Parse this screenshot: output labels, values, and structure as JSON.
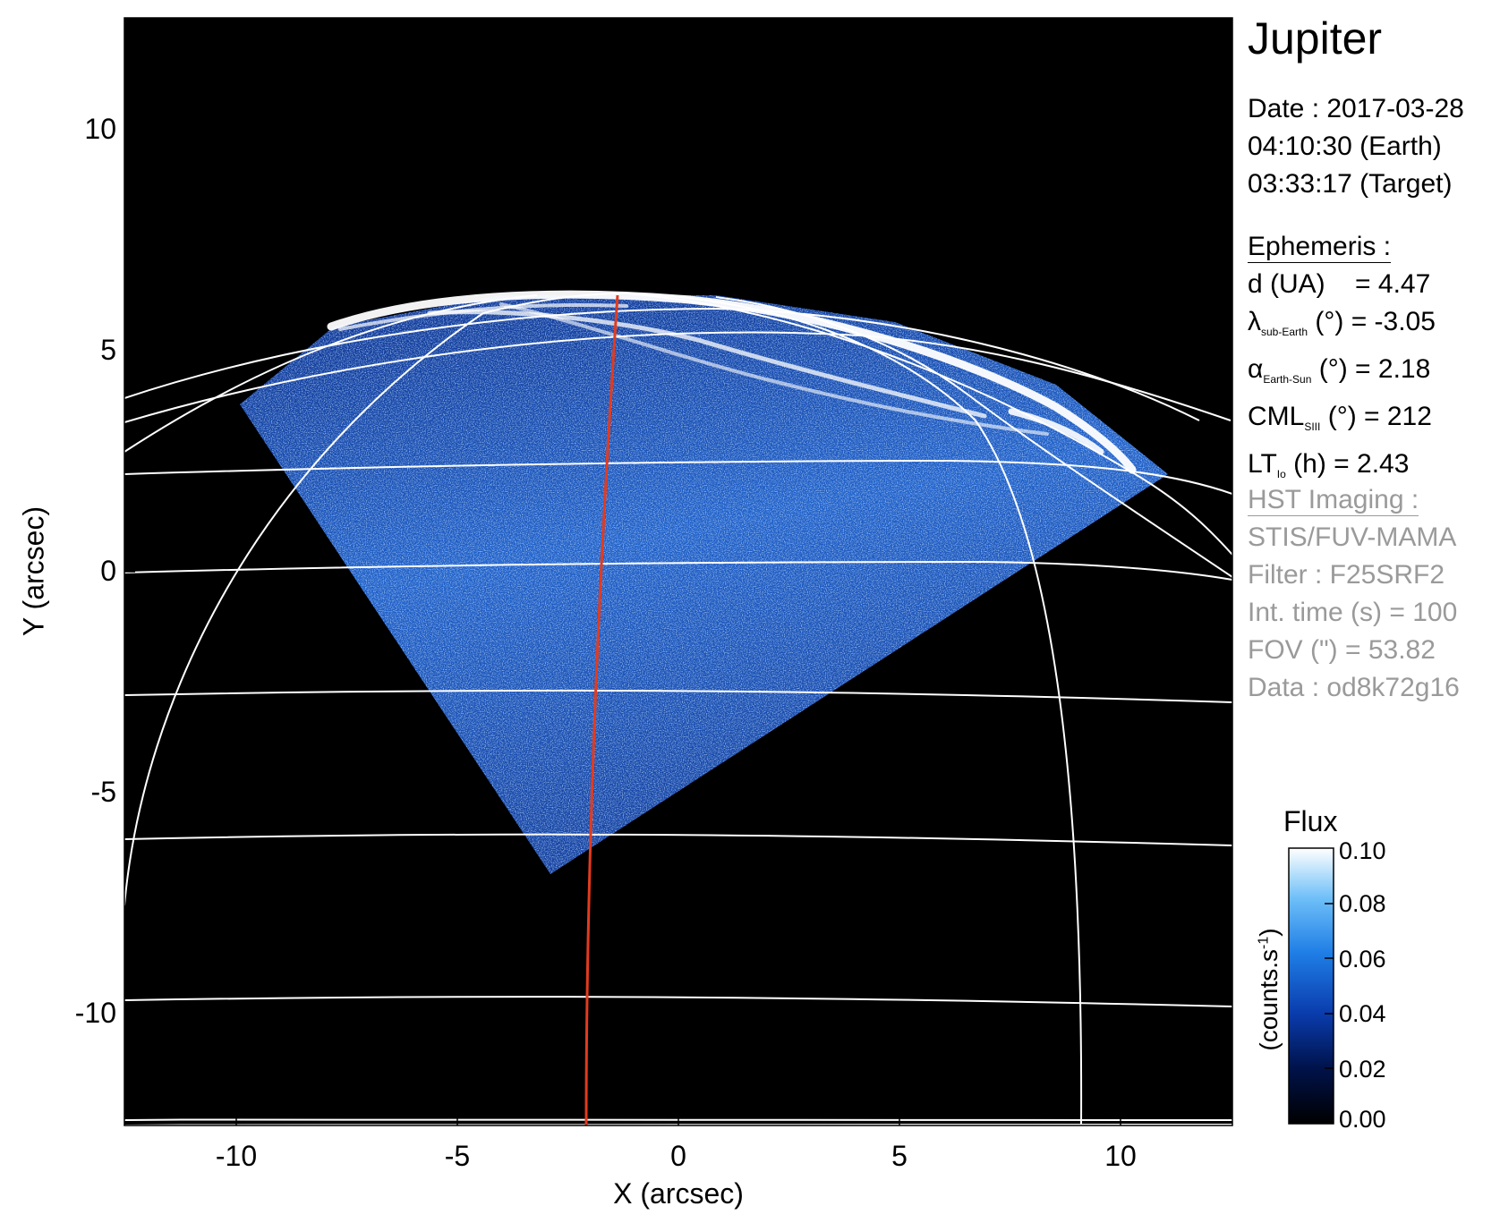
{
  "title": "Jupiter",
  "date": {
    "line1": "Date : 2017-03-28",
    "line2": "04:10:30 (Earth)",
    "line3": "03:33:17 (Target)"
  },
  "ephemeris": {
    "header": "Ephemeris :",
    "d": {
      "label": "d (UA)",
      "value": "= 4.47"
    },
    "lambda": {
      "symbol": "λ",
      "sub": "sub-Earth",
      "rest": "(°) = -3.05"
    },
    "alpha": {
      "symbol": "α",
      "sub": "Earth-Sun",
      "rest": "(°) = 2.18"
    },
    "cml": {
      "symbol": "CML",
      "sub": "SIII",
      "rest": "(°) = 212"
    },
    "lt": {
      "symbol": "LT",
      "sub": "Io",
      "rest": "(h) = 2.43"
    }
  },
  "imaging": {
    "header": "HST Imaging :",
    "lines": [
      "STIS/FUV-MAMA",
      "Filter : F25SRF2",
      "Int. time (s) = 100",
      "FOV (\") = 53.82",
      "Data : od8k72g16"
    ]
  },
  "colorbar": {
    "title": "Flux",
    "unit": "(counts.s",
    "unit_sup": "-1",
    "unit_close": ")",
    "ticks": [
      "0.10",
      "0.08",
      "0.06",
      "0.04",
      "0.02",
      "0.00"
    ],
    "colors": [
      "#000000",
      "#00124a",
      "#0a3cad",
      "#1f7ee6",
      "#6fc0f8",
      "#ffffff"
    ]
  },
  "axes": {
    "xlabel": "X (arcsec)",
    "ylabel": "Y (arcsec)",
    "xticks": [
      "-10",
      "-5",
      "0",
      "5",
      "10"
    ],
    "yticks": [
      "10",
      "5",
      "0",
      "-5",
      "-10"
    ]
  },
  "colors": {
    "background": "#000000",
    "grid": "#ffffff",
    "meridian": "#e23b1e",
    "aurora": "#ffffff"
  }
}
